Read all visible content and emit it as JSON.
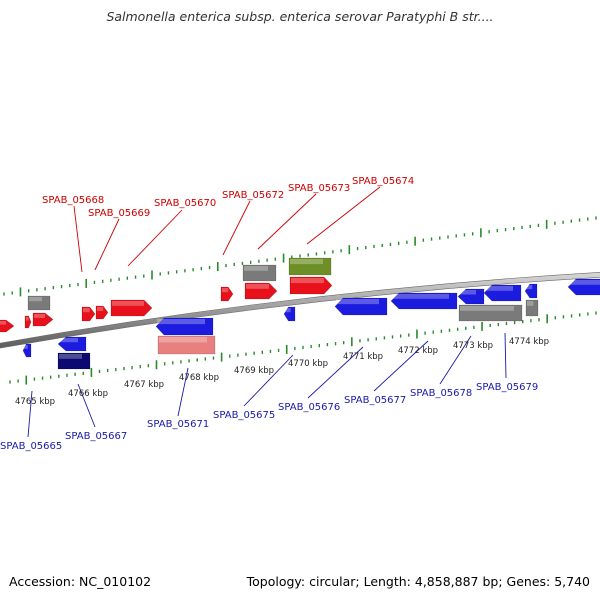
{
  "title": "Salmonella enterica subsp. enterica serovar Paratyphi B str....",
  "footer": {
    "accession": "Accession: NC_010102",
    "topology": "Topology: circular; Length: 4,858,887 bp; Genes: 5,740"
  },
  "colors": {
    "forward_gene": "#e8101a",
    "reverse_gene": "#1c1ce0",
    "dark_reverse_gene": "#0a0a70",
    "pale_reverse_gene": "#e88080",
    "other_feature": "#7a7a7a",
    "highlight_feature": "#6e8f26",
    "backbone": "#8c8c8c",
    "tick": "#2a8a2a",
    "top_label": "#cc0000",
    "bottom_label": "#1a1aa8"
  },
  "kbp_labels": [
    "4765 kbp",
    "4766 kbp",
    "4767 kbp",
    "4768 kbp",
    "4769 kbp",
    "4770 kbp",
    "4771 kbp",
    "4772 kbp",
    "4773 kbp",
    "4774 kbp"
  ],
  "top_labels": [
    "SPAB_05668",
    "SPAB_05669",
    "SPAB_05670",
    "SPAB_05672",
    "SPAB_05673",
    "SPAB_05674"
  ],
  "bottom_labels": [
    "SPAB_05665",
    "SPAB_05667",
    "SPAB_05671",
    "SPAB_05675",
    "SPAB_05676",
    "SPAB_05677",
    "SPAB_05678",
    "SPAB_05679"
  ]
}
